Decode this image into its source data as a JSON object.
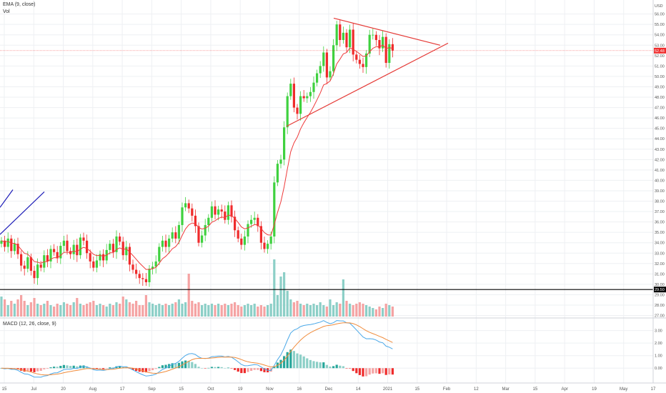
{
  "legend": {
    "ema_label": "EMA (9, close)",
    "vol_label": "Vol",
    "macd_label": "MACD (12, 26, close, 9)"
  },
  "colors": {
    "up": "#26a69a",
    "up_bright": "#3fd13f",
    "down": "#ef2b2b",
    "vol_up": "#8ccfc7",
    "vol_down": "#f5a3a3",
    "ema": "#ef3b3b",
    "trendline": "#e53935",
    "blue_line": "#1e1eb8",
    "macd_line": "#4aa8e8",
    "signal_line": "#f08c3c",
    "grid": "#eef0f3",
    "price_tag": "#ef2b2b",
    "level_tag": "#000000"
  },
  "chart_data": {
    "type": "candlestick",
    "currency": "USD",
    "x_ticks": [
      "15",
      "Jul",
      "20",
      "Aug",
      "17",
      "Sep",
      "15",
      "Oct",
      "19",
      "Nov",
      "16",
      "Dec",
      "14",
      "2021",
      "15",
      "Feb",
      "12",
      "Mar",
      "15",
      "Apr",
      "19",
      "May",
      "17"
    ],
    "price_axis_ticks": [
      "56.00",
      "55.00",
      "54.00",
      "53.00",
      "52.00",
      "51.00",
      "50.00",
      "49.00",
      "48.00",
      "47.00",
      "46.00",
      "45.00",
      "44.00",
      "43.00",
      "42.00",
      "41.00",
      "40.00",
      "39.00",
      "38.00",
      "37.00",
      "36.00",
      "35.00",
      "34.00",
      "33.00",
      "32.00",
      "31.00",
      "30.00",
      "29.00",
      "28.00",
      "27.00"
    ],
    "macd_axis_ticks": [
      "3.00",
      "2.00",
      "1.00",
      "0.00"
    ],
    "current_price": "52.48",
    "horizontal_level": "29.50",
    "price_range": [
      26.9,
      56.8
    ],
    "closes": [
      34.2,
      33.6,
      34.4,
      33.2,
      33.9,
      32.9,
      31.8,
      31.5,
      32.6,
      31.3,
      30.6,
      31.9,
      31.6,
      32.8,
      32.2,
      33.4,
      33.1,
      32.5,
      33.7,
      34.2,
      33.2,
      32.9,
      33.8,
      32.8,
      34.5,
      34.2,
      33.0,
      32.2,
      31.6,
      32.3,
      32.9,
      32.3,
      33.3,
      33.9,
      33.1,
      34.6,
      34.1,
      32.8,
      33.6,
      31.9,
      31.4,
      31.0,
      30.6,
      30.5,
      30.2,
      31.5,
      31.7,
      32.2,
      33.6,
      34.2,
      33.6,
      34.4,
      35.0,
      34.4,
      35.7,
      37.4,
      37.8,
      37.3,
      36.6,
      35.6,
      34.0,
      34.7,
      35.7,
      36.4,
      37.5,
      36.7,
      37.2,
      37.0,
      36.2,
      37.6,
      36.5,
      35.2,
      34.4,
      33.8,
      34.6,
      35.8,
      36.2,
      36.4,
      35.6,
      34.0,
      33.4,
      33.9,
      34.6,
      39.8,
      41.6,
      42.0,
      45.1,
      48.1,
      49.3,
      47.0,
      46.4,
      48.1,
      47.9,
      48.1,
      48.5,
      49.4,
      50.3,
      51.0,
      52.3,
      49.9,
      50.5,
      53.0,
      55.0,
      53.5,
      54.2,
      52.8,
      54.5,
      52.1,
      51.6,
      51.2,
      50.9,
      52.2,
      54.0,
      54.0,
      53.5,
      52.7,
      53.8,
      51.3,
      53.1,
      52.48
    ],
    "volumes": [
      1.4,
      1.2,
      0.8,
      1.1,
      0.9,
      1.2,
      1.5,
      1.1,
      0.8,
      1.0,
      1.3,
      0.9,
      0.8,
      0.9,
      1.1,
      0.8,
      0.7,
      0.9,
      0.8,
      1.0,
      0.9,
      0.8,
      1.0,
      1.3,
      0.9,
      0.8,
      0.9,
      1.0,
      1.1,
      0.8,
      0.9,
      0.8,
      0.7,
      0.9,
      0.8,
      1.0,
      0.9,
      1.4,
      1.2,
      1.0,
      0.9,
      1.1,
      0.8,
      0.8,
      1.5,
      1.0,
      0.9,
      0.8,
      0.9,
      0.8,
      0.9,
      0.8,
      0.9,
      1.0,
      1.2,
      0.9,
      1.0,
      3.0,
      1.1,
      0.9,
      1.0,
      0.8,
      0.9,
      0.8,
      0.9,
      0.8,
      0.9,
      0.8,
      0.9,
      0.8,
      0.9,
      1.0,
      0.8,
      0.7,
      0.8,
      0.9,
      0.8,
      0.9,
      0.7,
      0.8,
      0.7,
      0.8,
      0.9,
      4.0,
      1.5,
      2.8,
      3.1,
      1.8,
      1.2,
      1.0,
      1.1,
      0.9,
      0.8,
      0.9,
      0.8,
      0.9,
      0.8,
      1.0,
      0.8,
      0.7,
      1.2,
      0.8,
      1.0,
      0.9,
      2.6,
      1.1,
      0.9,
      0.8,
      0.9,
      1.0,
      0.9,
      0.8,
      0.7,
      0.6,
      0.5,
      0.7,
      0.6,
      0.9,
      0.8,
      0.7
    ],
    "macd_range": [
      -0.5,
      3.55
    ]
  }
}
